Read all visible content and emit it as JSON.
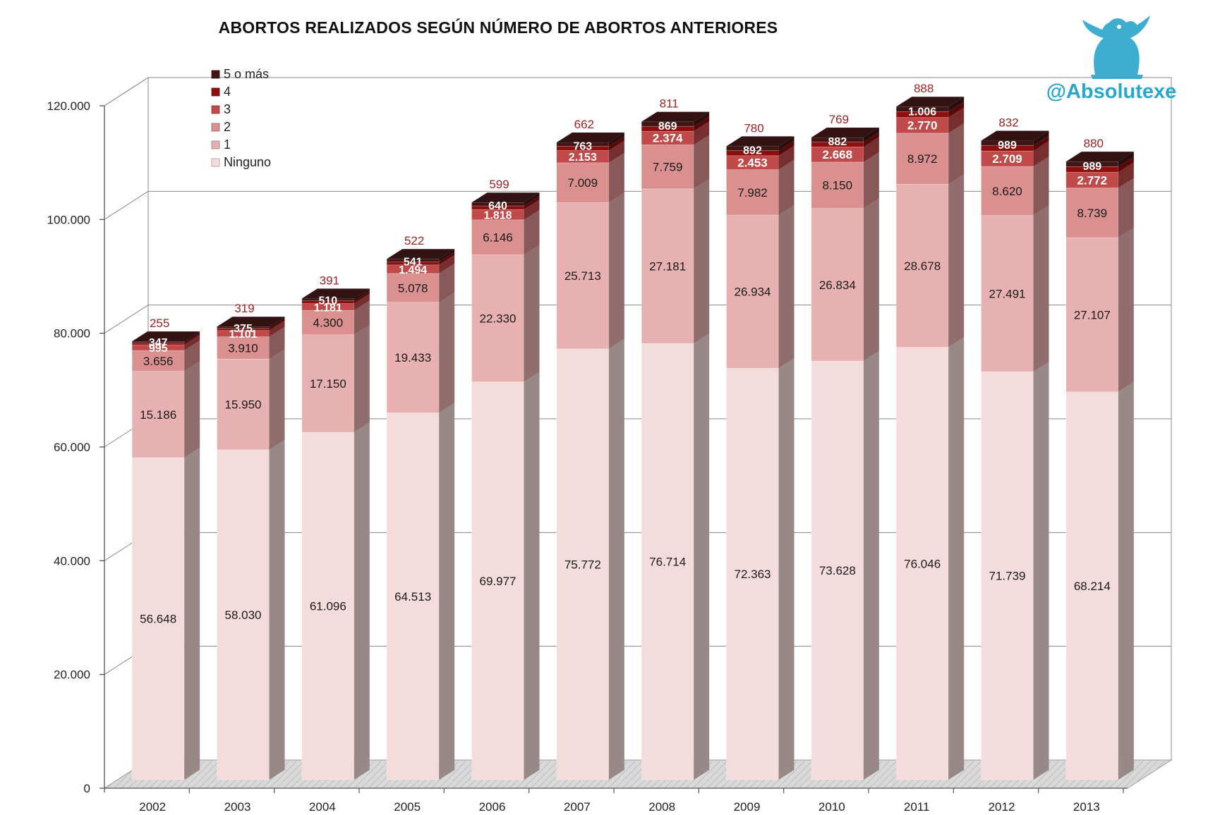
{
  "colors": {
    "brand": "#2aa6cc",
    "total_label": "#9b2323",
    "series": {
      "Ninguno": "#f5dcdc",
      "1": "#e8b1b1",
      "2": "#db9090",
      "3": "#c04a4a",
      "4": "#8e0d0d",
      "5 o más": "#3f1616"
    }
  },
  "brand": {
    "handle": "@Absolutexe",
    "icon": "griffin-logo-icon"
  },
  "chart_data": {
    "type": "bar",
    "stacked": true,
    "title": "ABORTOS REALIZADOS SEGÚN NÚMERO DE ABORTOS ANTERIORES",
    "categories": [
      "2002",
      "2003",
      "2004",
      "2005",
      "2006",
      "2007",
      "2008",
      "2009",
      "2010",
      "2011",
      "2012",
      "2013"
    ],
    "series": [
      {
        "name": "Ninguno",
        "values": [
          56648,
          58030,
          61096,
          64513,
          69977,
          75772,
          76714,
          72363,
          73628,
          76046,
          71739,
          68214
        ],
        "labels": [
          "56.648",
          "58.030",
          "61.096",
          "64.513",
          "69.977",
          "75.772",
          "76.714",
          "72.363",
          "73.628",
          "76.046",
          "71.739",
          "68.214"
        ]
      },
      {
        "name": "1",
        "values": [
          15186,
          15950,
          17150,
          19433,
          22330,
          25713,
          27181,
          26934,
          26834,
          28678,
          27491,
          27107
        ],
        "labels": [
          "15.186",
          "15.950",
          "17.150",
          "19.433",
          "22.330",
          "25.713",
          "27.181",
          "26.934",
          "26.834",
          "28.678",
          "27.491",
          "27.107"
        ]
      },
      {
        "name": "2",
        "values": [
          3656,
          3910,
          4300,
          5078,
          6146,
          7009,
          7759,
          7982,
          8150,
          8972,
          8620,
          8739
        ],
        "labels": [
          "3.656",
          "3.910",
          "4.300",
          "5.078",
          "6.146",
          "7.009",
          "7.759",
          "7.982",
          "8.150",
          "8.972",
          "8.620",
          "8.739"
        ]
      },
      {
        "name": "3",
        "values": [
          995,
          1101,
          1181,
          1494,
          1818,
          2153,
          2374,
          2453,
          2668,
          2770,
          2709,
          2772
        ],
        "labels": [
          "995",
          "1.101",
          "1.181",
          "1.494",
          "1.818",
          "2.153",
          "2.374",
          "2.453",
          "2.668",
          "2.770",
          "2.709",
          "2.772"
        ]
      },
      {
        "name": "4",
        "values": [
          347,
          375,
          510,
          541,
          640,
          763,
          869,
          892,
          882,
          1006,
          989,
          989
        ],
        "labels": [
          "347",
          "375",
          "510",
          "541",
          "640",
          "763",
          "869",
          "892",
          "882",
          "1.006",
          "989",
          "989"
        ]
      },
      {
        "name": "5 o más",
        "values": [
          255,
          319,
          391,
          522,
          599,
          662,
          811,
          780,
          769,
          888,
          832,
          880
        ],
        "labels": [
          "255",
          "319",
          "391",
          "522",
          "599",
          "662",
          "811",
          "780",
          "769",
          "888",
          "832",
          "880"
        ]
      }
    ],
    "legend_order": [
      "5 o más",
      "4",
      "3",
      "2",
      "1",
      "Ninguno"
    ],
    "ylim": [
      0,
      120000
    ],
    "yticks": [
      0,
      20000,
      40000,
      60000,
      80000,
      100000,
      120000
    ],
    "ytick_labels": [
      "0",
      "20.000",
      "40.000",
      "60.000",
      "80.000",
      "100.000",
      "120.000"
    ],
    "grid": true,
    "legend_position": "top-left",
    "xlabel": "",
    "ylabel": ""
  }
}
